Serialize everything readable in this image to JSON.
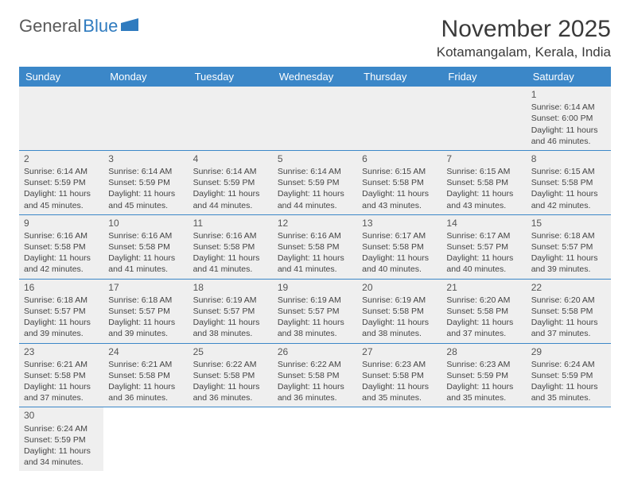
{
  "logo": {
    "text1": "General",
    "text2": "Blue"
  },
  "title": "November 2025",
  "location": "Kotamangalam, Kerala, India",
  "colors": {
    "header_bg": "#3b87c8",
    "header_text": "#ffffff",
    "cell_bg": "#efefef",
    "row_border": "#3b87c8",
    "logo_gray": "#5a5a5a",
    "logo_blue": "#2f7bbf"
  },
  "dayNames": [
    "Sunday",
    "Monday",
    "Tuesday",
    "Wednesday",
    "Thursday",
    "Friday",
    "Saturday"
  ],
  "weeks": [
    [
      null,
      null,
      null,
      null,
      null,
      null,
      {
        "n": "1",
        "sr": "Sunrise: 6:14 AM",
        "ss": "Sunset: 6:00 PM",
        "dl1": "Daylight: 11 hours",
        "dl2": "and 46 minutes."
      }
    ],
    [
      {
        "n": "2",
        "sr": "Sunrise: 6:14 AM",
        "ss": "Sunset: 5:59 PM",
        "dl1": "Daylight: 11 hours",
        "dl2": "and 45 minutes."
      },
      {
        "n": "3",
        "sr": "Sunrise: 6:14 AM",
        "ss": "Sunset: 5:59 PM",
        "dl1": "Daylight: 11 hours",
        "dl2": "and 45 minutes."
      },
      {
        "n": "4",
        "sr": "Sunrise: 6:14 AM",
        "ss": "Sunset: 5:59 PM",
        "dl1": "Daylight: 11 hours",
        "dl2": "and 44 minutes."
      },
      {
        "n": "5",
        "sr": "Sunrise: 6:14 AM",
        "ss": "Sunset: 5:59 PM",
        "dl1": "Daylight: 11 hours",
        "dl2": "and 44 minutes."
      },
      {
        "n": "6",
        "sr": "Sunrise: 6:15 AM",
        "ss": "Sunset: 5:58 PM",
        "dl1": "Daylight: 11 hours",
        "dl2": "and 43 minutes."
      },
      {
        "n": "7",
        "sr": "Sunrise: 6:15 AM",
        "ss": "Sunset: 5:58 PM",
        "dl1": "Daylight: 11 hours",
        "dl2": "and 43 minutes."
      },
      {
        "n": "8",
        "sr": "Sunrise: 6:15 AM",
        "ss": "Sunset: 5:58 PM",
        "dl1": "Daylight: 11 hours",
        "dl2": "and 42 minutes."
      }
    ],
    [
      {
        "n": "9",
        "sr": "Sunrise: 6:16 AM",
        "ss": "Sunset: 5:58 PM",
        "dl1": "Daylight: 11 hours",
        "dl2": "and 42 minutes."
      },
      {
        "n": "10",
        "sr": "Sunrise: 6:16 AM",
        "ss": "Sunset: 5:58 PM",
        "dl1": "Daylight: 11 hours",
        "dl2": "and 41 minutes."
      },
      {
        "n": "11",
        "sr": "Sunrise: 6:16 AM",
        "ss": "Sunset: 5:58 PM",
        "dl1": "Daylight: 11 hours",
        "dl2": "and 41 minutes."
      },
      {
        "n": "12",
        "sr": "Sunrise: 6:16 AM",
        "ss": "Sunset: 5:58 PM",
        "dl1": "Daylight: 11 hours",
        "dl2": "and 41 minutes."
      },
      {
        "n": "13",
        "sr": "Sunrise: 6:17 AM",
        "ss": "Sunset: 5:58 PM",
        "dl1": "Daylight: 11 hours",
        "dl2": "and 40 minutes."
      },
      {
        "n": "14",
        "sr": "Sunrise: 6:17 AM",
        "ss": "Sunset: 5:57 PM",
        "dl1": "Daylight: 11 hours",
        "dl2": "and 40 minutes."
      },
      {
        "n": "15",
        "sr": "Sunrise: 6:18 AM",
        "ss": "Sunset: 5:57 PM",
        "dl1": "Daylight: 11 hours",
        "dl2": "and 39 minutes."
      }
    ],
    [
      {
        "n": "16",
        "sr": "Sunrise: 6:18 AM",
        "ss": "Sunset: 5:57 PM",
        "dl1": "Daylight: 11 hours",
        "dl2": "and 39 minutes."
      },
      {
        "n": "17",
        "sr": "Sunrise: 6:18 AM",
        "ss": "Sunset: 5:57 PM",
        "dl1": "Daylight: 11 hours",
        "dl2": "and 39 minutes."
      },
      {
        "n": "18",
        "sr": "Sunrise: 6:19 AM",
        "ss": "Sunset: 5:57 PM",
        "dl1": "Daylight: 11 hours",
        "dl2": "and 38 minutes."
      },
      {
        "n": "19",
        "sr": "Sunrise: 6:19 AM",
        "ss": "Sunset: 5:57 PM",
        "dl1": "Daylight: 11 hours",
        "dl2": "and 38 minutes."
      },
      {
        "n": "20",
        "sr": "Sunrise: 6:19 AM",
        "ss": "Sunset: 5:58 PM",
        "dl1": "Daylight: 11 hours",
        "dl2": "and 38 minutes."
      },
      {
        "n": "21",
        "sr": "Sunrise: 6:20 AM",
        "ss": "Sunset: 5:58 PM",
        "dl1": "Daylight: 11 hours",
        "dl2": "and 37 minutes."
      },
      {
        "n": "22",
        "sr": "Sunrise: 6:20 AM",
        "ss": "Sunset: 5:58 PM",
        "dl1": "Daylight: 11 hours",
        "dl2": "and 37 minutes."
      }
    ],
    [
      {
        "n": "23",
        "sr": "Sunrise: 6:21 AM",
        "ss": "Sunset: 5:58 PM",
        "dl1": "Daylight: 11 hours",
        "dl2": "and 37 minutes."
      },
      {
        "n": "24",
        "sr": "Sunrise: 6:21 AM",
        "ss": "Sunset: 5:58 PM",
        "dl1": "Daylight: 11 hours",
        "dl2": "and 36 minutes."
      },
      {
        "n": "25",
        "sr": "Sunrise: 6:22 AM",
        "ss": "Sunset: 5:58 PM",
        "dl1": "Daylight: 11 hours",
        "dl2": "and 36 minutes."
      },
      {
        "n": "26",
        "sr": "Sunrise: 6:22 AM",
        "ss": "Sunset: 5:58 PM",
        "dl1": "Daylight: 11 hours",
        "dl2": "and 36 minutes."
      },
      {
        "n": "27",
        "sr": "Sunrise: 6:23 AM",
        "ss": "Sunset: 5:58 PM",
        "dl1": "Daylight: 11 hours",
        "dl2": "and 35 minutes."
      },
      {
        "n": "28",
        "sr": "Sunrise: 6:23 AM",
        "ss": "Sunset: 5:59 PM",
        "dl1": "Daylight: 11 hours",
        "dl2": "and 35 minutes."
      },
      {
        "n": "29",
        "sr": "Sunrise: 6:24 AM",
        "ss": "Sunset: 5:59 PM",
        "dl1": "Daylight: 11 hours",
        "dl2": "and 35 minutes."
      }
    ],
    [
      {
        "n": "30",
        "sr": "Sunrise: 6:24 AM",
        "ss": "Sunset: 5:59 PM",
        "dl1": "Daylight: 11 hours",
        "dl2": "and 34 minutes."
      },
      null,
      null,
      null,
      null,
      null,
      null
    ]
  ]
}
